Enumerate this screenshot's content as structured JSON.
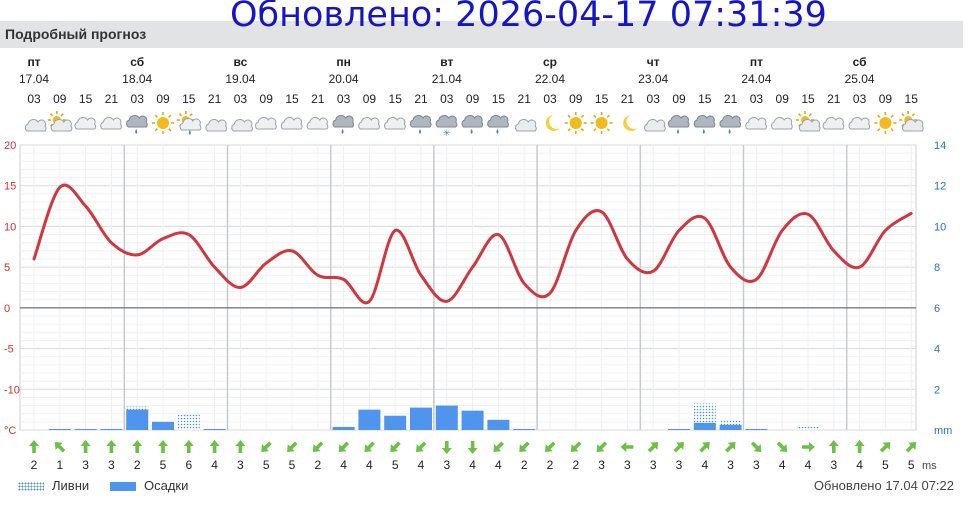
{
  "banner_updated": "Обновлено: 2026-04-17 07:31:39",
  "section_title": "Подробный прогноз",
  "footer_updated": "Обновлено 17.04 07:22",
  "legend": {
    "showers": "Ливни",
    "precip": "Осадки"
  },
  "colors": {
    "temp_line": "#d2363c",
    "precip": "#4f95ee",
    "showers": "#4f8fe6",
    "wind_arrow": "#6ac143",
    "left_axis": "#d0302f",
    "right_axis": "#2a6fc4",
    "banner": "#1515c8"
  },
  "days": [
    {
      "dow": "пт",
      "date": "17.04"
    },
    {
      "dow": "сб",
      "date": "18.04"
    },
    {
      "dow": "вс",
      "date": "19.04"
    },
    {
      "dow": "пн",
      "date": "20.04"
    },
    {
      "dow": "вт",
      "date": "21.04"
    },
    {
      "dow": "ср",
      "date": "22.04"
    },
    {
      "dow": "чт",
      "date": "23.04"
    },
    {
      "dow": "пт",
      "date": "24.04"
    },
    {
      "dow": "сб",
      "date": "25.04"
    }
  ],
  "hours": [
    "03",
    "09",
    "15",
    "21",
    "03",
    "09",
    "15",
    "21",
    "03",
    "09",
    "15",
    "21",
    "03",
    "09",
    "15",
    "21",
    "03",
    "09",
    "15",
    "21",
    "03",
    "09",
    "15",
    "21",
    "03",
    "09",
    "15",
    "21",
    "03",
    "09",
    "15",
    "21",
    "03",
    "09",
    "15"
  ],
  "icons": [
    "moon-cloud-icon",
    "sun-cloud-icon",
    "cloud-icon",
    "cloud-icon",
    "rain-cloud-icon",
    "sun-icon",
    "sun-rain-icon",
    "moon-cloud-icon",
    "moon-cloud-icon",
    "cloud-icon",
    "cloud-icon",
    "cloud-icon",
    "rain-cloud-icon",
    "cloud-icon",
    "cloud-icon",
    "rain-cloud-icon",
    "snow-cloud-icon",
    "rain-cloud-icon",
    "rain-cloud-icon",
    "moon-cloud-icon",
    "moon-icon",
    "sun-icon",
    "sun-icon",
    "moon-icon",
    "moon-cloud-icon",
    "rain-cloud-icon",
    "rain-cloud-icon",
    "rain-cloud-icon",
    "cloud-icon",
    "cloud-icon",
    "sun-cloud-icon",
    "cloud-icon",
    "cloud-icon",
    "sun-icon",
    "sun-cloud-icon"
  ],
  "chart_data": {
    "type": "line",
    "x": [
      "17.04 03",
      "17.04 09",
      "17.04 15",
      "17.04 21",
      "18.04 03",
      "18.04 09",
      "18.04 15",
      "18.04 21",
      "19.04 03",
      "19.04 09",
      "19.04 15",
      "19.04 21",
      "20.04 03",
      "20.04 09",
      "20.04 15",
      "20.04 21",
      "21.04 03",
      "21.04 09",
      "21.04 15",
      "21.04 21",
      "22.04 03",
      "22.04 09",
      "22.04 15",
      "22.04 21",
      "23.04 03",
      "23.04 09",
      "23.04 15",
      "23.04 21",
      "24.04 03",
      "24.04 09",
      "24.04 15",
      "24.04 21",
      "25.04 03",
      "25.04 09",
      "25.04 15"
    ],
    "series": [
      {
        "values": [
          6,
          14.8,
          12.5,
          8,
          6.5,
          8.5,
          9,
          5,
          2.5,
          5.5,
          7,
          4,
          3.5,
          0.8,
          9.5,
          4,
          0.8,
          5,
          9,
          3,
          1.8,
          9.5,
          11.8,
          6,
          4.5,
          9.5,
          11,
          5,
          3.5,
          9.5,
          11.5,
          7,
          5,
          9.5,
          11.6
        ]
      }
    ],
    "y_left": {
      "ticks": [
        "20",
        "15",
        "10",
        "5",
        "0",
        "-5",
        "-10",
        "°C"
      ],
      "range": [
        -15,
        20
      ]
    },
    "y_right": {
      "ticks": [
        "14",
        "12",
        "10",
        "8",
        "6",
        "4",
        "2",
        "mm"
      ],
      "range": [
        0,
        14
      ]
    },
    "precip_bars": {
      "precip_mm": [
        0,
        0.05,
        0.05,
        0.05,
        1.0,
        0.4,
        0,
        0.05,
        0,
        0,
        0,
        0,
        0.15,
        1.0,
        0.7,
        1.1,
        1.2,
        0.95,
        0.5,
        0.05,
        0,
        0,
        0,
        0,
        0,
        0.05,
        0.35,
        0.25,
        0.05,
        0,
        0,
        0,
        0,
        0,
        0
      ],
      "showers_mm": [
        0,
        0,
        0,
        0,
        1.15,
        0,
        0.75,
        0,
        0,
        0,
        0,
        0,
        0,
        0,
        0,
        0,
        0,
        0,
        0,
        0,
        0,
        0,
        0,
        0,
        0,
        0,
        1.3,
        0.5,
        0,
        0,
        0.15,
        0,
        0,
        0,
        0
      ]
    },
    "wind": {
      "unit": "ms",
      "speeds": [
        "2",
        "1",
        "3",
        "3",
        "2",
        "5",
        "6",
        "4",
        "3",
        "5",
        "5",
        "2",
        "4",
        "4",
        "5",
        "4",
        "3",
        "4",
        "4",
        "2",
        "2",
        "2",
        "3",
        "3",
        "3",
        "3",
        "4",
        "3",
        "3",
        "4",
        "4",
        "3",
        "4",
        "5",
        "5"
      ],
      "directions_deg": [
        0,
        315,
        0,
        0,
        0,
        0,
        0,
        0,
        0,
        225,
        225,
        225,
        225,
        225,
        225,
        225,
        180,
        180,
        225,
        225,
        225,
        225,
        225,
        270,
        45,
        45,
        45,
        45,
        135,
        135,
        90,
        0,
        0,
        45,
        45
      ]
    }
  }
}
